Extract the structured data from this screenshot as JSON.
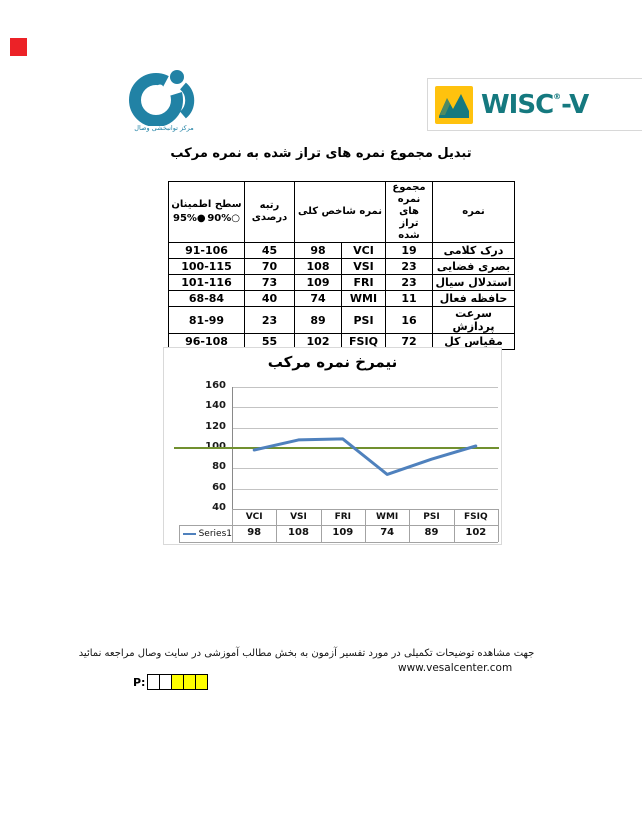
{
  "marker": {
    "color": "#EC2227"
  },
  "logo": {
    "caption": "مرکز توانبخشی وصال",
    "color": "#2182A5"
  },
  "brand": {
    "name": "WISC",
    "registered": "®",
    "version": "-V",
    "teal": "#15797F",
    "yellow": "#FFC20E"
  },
  "title": "تبدیل مجموع نمره های تراز شده به نمره مرکب",
  "score_table": {
    "header": {
      "name": "نمره",
      "sum": "مجموع نمره های تراز شده",
      "index": "نمره شاخص کلی",
      "percentile": "رتبه درصدی",
      "confidence": "سطح اطمینان",
      "confidence_95": "95%●",
      "confidence_90": "90%○"
    },
    "rows": [
      {
        "name": "درک کلامی",
        "sum": "19",
        "abbr": "VCI",
        "index": "98",
        "percentile": "45",
        "confidence": "91-106"
      },
      {
        "name": "بصری فضایی",
        "sum": "23",
        "abbr": "VSI",
        "index": "108",
        "percentile": "70",
        "confidence": "100-115"
      },
      {
        "name": "استدلال سیال",
        "sum": "23",
        "abbr": "FRI",
        "index": "109",
        "percentile": "73",
        "confidence": "101-116"
      },
      {
        "name": "حافظه فعال",
        "sum": "11",
        "abbr": "WMI",
        "index": "74",
        "percentile": "40",
        "confidence": "68-84"
      },
      {
        "name": "سرعت پردازش",
        "sum": "16",
        "abbr": "PSI",
        "index": "89",
        "percentile": "23",
        "confidence": "81-99"
      },
      {
        "name": "مقیاس کل",
        "sum": "72",
        "abbr": "FSIQ",
        "index": "102",
        "percentile": "55",
        "confidence": "96-108"
      }
    ]
  },
  "chart_data": {
    "type": "line",
    "title": "نیمرخ  نمره مرکب",
    "categories": [
      "VCI",
      "VSI",
      "FRI",
      "WMI",
      "PSI",
      "FSIQ"
    ],
    "series": [
      {
        "name": "Series1",
        "values": [
          98,
          108,
          109,
          74,
          89,
          102
        ],
        "color": "#4F81BD"
      }
    ],
    "ylim": [
      40,
      160
    ],
    "ytick_step": 20,
    "reference_line": {
      "value": 100,
      "color": "#71902F"
    },
    "grid": true,
    "legend_position": "bottom-left",
    "data_table_shown": true
  },
  "footer": {
    "note": "جهت مشاهده توضیحات تکمیلی در مورد تفسیر آزمون به بخش مطالب آموزشی در سایت وصال مراجعه نمائید",
    "url": "www.vesalcenter.com",
    "page_label": "P:",
    "page_boxes": [
      "#FFFFFF",
      "#FFFFFF",
      "#FFFF00",
      "#FFFF00",
      "#FFFF00"
    ]
  }
}
